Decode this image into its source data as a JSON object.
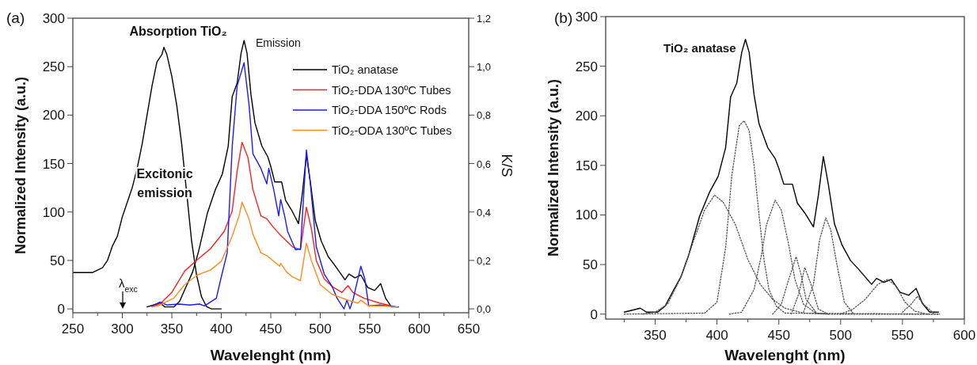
{
  "chart_data": [
    {
      "type": "line",
      "xlabel": "Wavelenght (nm)",
      "ylabel": "Normalized Intensity (a.u.)",
      "y2label": "K/S",
      "xlim": [
        250,
        650
      ],
      "ylim": [
        -4,
        300
      ],
      "y2lim": [
        -0.016,
        1.2
      ],
      "xticks": [
        250,
        {
          "value": 275,
          "label": null
        },
        300,
        {
          "value": 325,
          "label": null
        },
        350,
        {
          "value": 375,
          "label": null
        },
        400,
        {
          "value": 425,
          "label": null
        },
        450,
        {
          "value": 475,
          "label": null
        },
        500,
        {
          "value": 525,
          "label": null
        },
        550,
        {
          "value": 575,
          "label": null
        },
        600,
        {
          "value": 625,
          "label": null
        },
        650
      ],
      "yticks": [
        0,
        50,
        100,
        150,
        200,
        250,
        300
      ],
      "y2ticks": [
        {
          "value": 0,
          "label": "0,0"
        },
        {
          "value": 0.2,
          "label": "0,2"
        },
        {
          "value": 0.4,
          "label": "0,4"
        },
        {
          "value": 0.6,
          "label": "0,6"
        },
        {
          "value": 0.8,
          "label": "0,8"
        },
        {
          "value": 1.0,
          "label": "1,0"
        },
        {
          "value": 1.2,
          "label": "1,2"
        }
      ],
      "legend": "top right",
      "annotations": [
        "(a)",
        "Absorption TiO₂",
        "Emission",
        "Excitonic emission",
        "λ$_{exc}$"
      ],
      "series": [
        {
          "color": "#000000",
          "axis": "y2",
          "x": [
            250,
            260,
            270,
            280,
            285,
            290,
            295,
            300,
            305,
            310,
            315,
            320,
            325,
            330,
            335,
            340,
            342,
            345,
            350,
            355,
            360,
            365,
            370,
            375,
            380,
            385,
            390,
            400
          ],
          "values": [
            0.15,
            0.15,
            0.15,
            0.17,
            0.2,
            0.26,
            0.3,
            0.38,
            0.44,
            0.5,
            0.58,
            0.68,
            0.8,
            0.92,
            1.02,
            1.05,
            1.08,
            1.05,
            0.96,
            0.84,
            0.68,
            0.48,
            0.28,
            0.14,
            0.05,
            0.01,
            0.0,
            0.0
          ]
        },
        {
          "name": "TiO₂ anatase",
          "color": "#000000",
          "x": [
            325,
            338,
            343,
            352,
            358,
            364,
            371,
            377,
            386,
            394,
            401,
            407,
            411,
            416,
            420,
            423,
            426,
            430,
            434,
            441,
            447,
            450,
            454,
            461,
            465,
            471,
            478,
            482,
            486,
            490,
            495,
            501,
            508,
            514,
            525,
            529,
            535,
            541,
            548,
            555,
            561,
            566,
            572,
            579
          ],
          "values": [
            2,
            6,
            2,
            2,
            8,
            22,
            38,
            59,
            99,
            123,
            139,
            168,
            219,
            233,
            264,
            277,
            264,
            221,
            192,
            168,
            157,
            147,
            131,
            131,
            112,
            102,
            88,
            120,
            159,
            131,
            91,
            70,
            54,
            46,
            30,
            36,
            32,
            35,
            22,
            19,
            26,
            11,
            2,
            2
          ]
        },
        {
          "name": "TiO₂-DDA 130ºC Tubes",
          "color": "#ff2020",
          "x": [
            330,
            339,
            350,
            363,
            376,
            389,
            403,
            411,
            416,
            421,
            427,
            432,
            440,
            446,
            452,
            459,
            466,
            472,
            480,
            486,
            491,
            496,
            504,
            512,
            522,
            528,
            533,
            544,
            560,
            576
          ],
          "values": [
            2,
            6,
            17,
            39,
            51,
            62,
            80,
            101,
            142,
            172,
            156,
            123,
            96,
            93,
            85,
            77,
            70,
            64,
            61,
            105,
            83,
            50,
            31,
            23,
            17,
            24,
            17,
            11,
            6,
            2
          ]
        },
        {
          "name": "TiO₂-DDA 150ºC Rods",
          "color": "#1a1aff",
          "x": [
            330,
            338,
            345,
            357,
            368,
            378,
            383,
            395,
            400,
            406,
            411,
            416,
            423,
            428,
            432,
            440,
            446,
            448,
            453,
            458,
            460,
            464,
            467,
            475,
            480,
            486,
            490,
            496,
            504,
            512,
            517,
            524,
            527,
            530,
            533,
            541,
            545,
            549,
            560,
            570,
            578
          ],
          "values": [
            3,
            7,
            4,
            5,
            4,
            5,
            3,
            11,
            33,
            58,
            167,
            230,
            254,
            211,
            160,
            145,
            129,
            145,
            123,
            96,
            113,
            96,
            80,
            61,
            62,
            164,
            129,
            64,
            36,
            23,
            11,
            0,
            9,
            0,
            9,
            44,
            31,
            3,
            4,
            3,
            2
          ]
        },
        {
          "name": "TiO₂-ODA 130ºC Tubes",
          "color": "#ff8c1a",
          "x": [
            330,
            336,
            352,
            363,
            376,
            389,
            400,
            409,
            411,
            418,
            421,
            428,
            432,
            440,
            446,
            452,
            459,
            460,
            466,
            472,
            480,
            486,
            491,
            500,
            512,
            528,
            538,
            541,
            549,
            563,
            578
          ],
          "values": [
            2,
            3,
            11,
            25,
            35,
            40,
            49,
            70,
            75,
            96,
            110,
            93,
            77,
            58,
            55,
            50,
            44,
            47,
            38,
            33,
            29,
            68,
            50,
            25,
            15,
            9,
            6,
            9,
            3,
            3,
            2
          ]
        }
      ]
    },
    {
      "type": "line",
      "xlabel": "Wavelenght (nm)",
      "ylabel": "Normalized Intensity (a.u.)",
      "xlim": [
        310,
        600
      ],
      "ylim": [
        -5,
        300
      ],
      "xticks": [
        {
          "value": 325,
          "label": null
        },
        350,
        {
          "value": 375,
          "label": null
        },
        400,
        {
          "value": 425,
          "label": null
        },
        450,
        {
          "value": 475,
          "label": null
        },
        500,
        {
          "value": 525,
          "label": null
        },
        550,
        {
          "value": 575,
          "label": null
        },
        600
      ],
      "yticks": [
        0,
        50,
        100,
        150,
        200,
        250,
        300
      ],
      "annotations": [
        "(b)"
      ],
      "series": [
        {
          "name": "TiO₂ anatase",
          "color": "#000000",
          "x": [
            325,
            338,
            343,
            352,
            358,
            364,
            371,
            377,
            386,
            394,
            401,
            407,
            411,
            416,
            420,
            423,
            426,
            430,
            434,
            441,
            447,
            450,
            454,
            461,
            465,
            471,
            478,
            482,
            486,
            490,
            495,
            501,
            508,
            514,
            525,
            529,
            535,
            541,
            548,
            555,
            561,
            566,
            572,
            579
          ],
          "values": [
            2,
            6,
            2,
            2,
            8,
            22,
            38,
            59,
            99,
            123,
            139,
            168,
            219,
            233,
            264,
            277,
            264,
            221,
            192,
            168,
            157,
            147,
            131,
            131,
            112,
            102,
            88,
            120,
            159,
            131,
            91,
            70,
            54,
            46,
            30,
            36,
            32,
            35,
            22,
            19,
            26,
            11,
            2,
            2
          ]
        },
        {
          "color": "#555555",
          "line_style": "dotted",
          "x": [
            340,
            350,
            360,
            370,
            380,
            390,
            398,
            405,
            415,
            425,
            435,
            445,
            455,
            470,
            490,
            580
          ],
          "values": [
            0,
            2,
            10,
            35,
            70,
            105,
            120,
            113,
            90,
            55,
            30,
            15,
            6,
            1,
            0,
            0
          ]
        },
        {
          "color": "#555555",
          "line_style": "dotted",
          "x": [
            325,
            390,
            400,
            407,
            412,
            418,
            422,
            426,
            430,
            434,
            438,
            442,
            448,
            455,
            580
          ],
          "values": [
            0,
            1,
            12,
            67,
            140,
            190,
            195,
            185,
            150,
            100,
            55,
            25,
            8,
            1,
            0
          ]
        },
        {
          "color": "#555555",
          "line_style": "dotted",
          "x": [
            410,
            420,
            430,
            436,
            440,
            447,
            452,
            458,
            463,
            470,
            480,
            490
          ],
          "values": [
            0,
            2,
            25,
            60,
            90,
            115,
            105,
            70,
            35,
            10,
            1,
            0
          ]
        },
        {
          "color": "#555555",
          "line_style": "dotted",
          "x": [
            445,
            452,
            458,
            464,
            468,
            472,
            480
          ],
          "values": [
            0,
            10,
            35,
            58,
            40,
            15,
            2
          ]
        },
        {
          "color": "#555555",
          "line_style": "dotted",
          "x": [
            460,
            466,
            471,
            476,
            482,
            490
          ],
          "values": [
            0,
            20,
            47,
            30,
            5,
            0
          ]
        },
        {
          "color": "#555555",
          "line_style": "dotted",
          "x": [
            470,
            478,
            483,
            488,
            492,
            497,
            503,
            510
          ],
          "values": [
            2,
            30,
            75,
            97,
            85,
            50,
            12,
            1
          ]
        },
        {
          "color": "#555555",
          "line_style": "dotted",
          "x": [
            500,
            510,
            520,
            530,
            538,
            545,
            552,
            560,
            570
          ],
          "values": [
            0,
            5,
            15,
            30,
            35,
            28,
            12,
            3,
            0
          ]
        },
        {
          "color": "#555555",
          "line_style": "dotted",
          "x": [
            550,
            557,
            562,
            567,
            575
          ],
          "values": [
            2,
            10,
            18,
            10,
            1
          ]
        }
      ]
    }
  ]
}
